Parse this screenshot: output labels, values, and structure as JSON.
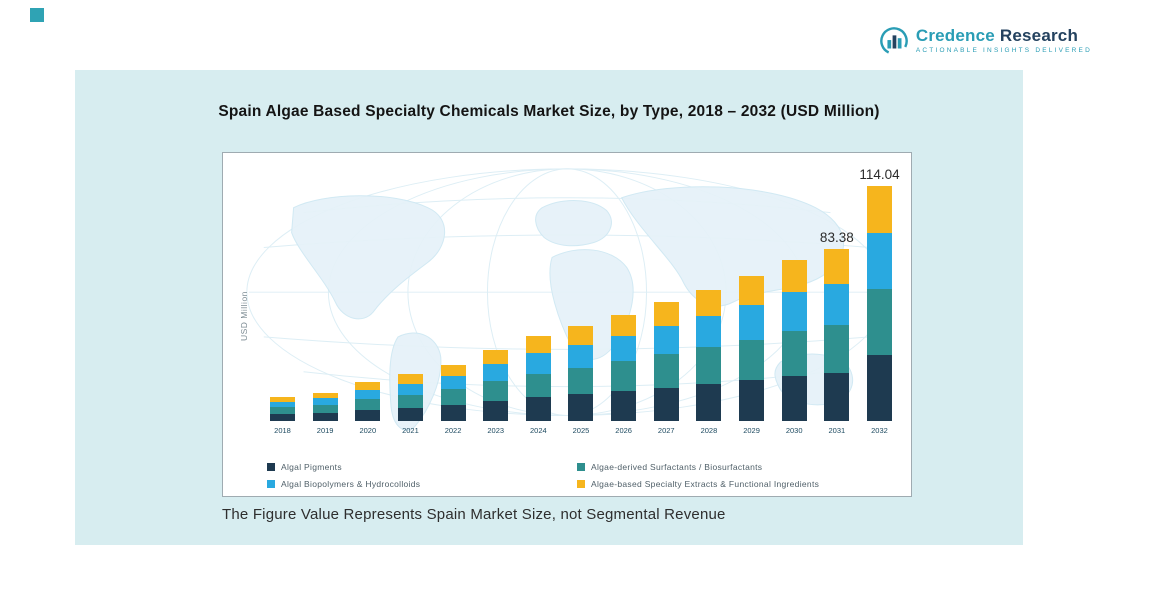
{
  "page": {
    "accent_square_color": "#2fa3b4"
  },
  "logo": {
    "name_part1": "Credence",
    "name_part2": " Research",
    "tagline": "Actionable Insights Delivered",
    "primary_color": "#2a9db5",
    "dark_color": "#24425f"
  },
  "chart_title": "Spain Algae Based Specialty Chemicals Market Size, by Type, 2018 – 2032 (USD Million)",
  "footnote": "The Figure Value Represents Spain Market Size, not Segmental Revenue",
  "chart_data": {
    "type": "bar",
    "stacked": true,
    "title": "Spain Algae Based Specialty Chemicals Market Size, by Type, 2018 – 2032 (USD Million)",
    "xlabel": "",
    "ylabel": "USD Million",
    "gridlines": false,
    "legend_position": "bottom",
    "categories": [
      "2018",
      "2019",
      "2020",
      "2021",
      "2022",
      "2023",
      "2024",
      "2025",
      "2026",
      "2027",
      "2028",
      "2029",
      "2030",
      "2031",
      "2032"
    ],
    "series": [
      {
        "name": "Algal Pigments",
        "color": "#1e3a50",
        "values": [
          3.28,
          3.84,
          5.26,
          6.36,
          7.67,
          9.63,
          11.51,
          12.94,
          14.48,
          16.21,
          17.86,
          19.71,
          21.92,
          23.35,
          31.93
        ]
      },
      {
        "name": "Algae-derived Surfactants / Biosurfactants",
        "color": "#2e8f8e",
        "values": [
          3.28,
          3.84,
          5.26,
          6.36,
          7.67,
          9.63,
          11.51,
          12.94,
          14.48,
          16.21,
          17.86,
          19.71,
          21.92,
          23.35,
          31.93
        ]
      },
      {
        "name": "Algal Biopolymers & Hydrocolloids",
        "color": "#29a9e0",
        "values": [
          2.81,
          3.29,
          4.51,
          5.45,
          6.58,
          8.26,
          9.86,
          11.09,
          12.41,
          13.9,
          15.31,
          16.9,
          18.79,
          20.01,
          27.37
        ]
      },
      {
        "name": "Algae-based Specialty Extracts & Functional Ingredients",
        "color": "#f6b51d",
        "values": [
          2.33,
          2.73,
          3.77,
          4.53,
          5.48,
          6.88,
          8.22,
          9.23,
          10.33,
          11.58,
          12.77,
          14.08,
          15.67,
          16.67,
          22.81
        ]
      }
    ],
    "totals": [
      11.7,
      13.7,
      18.8,
      22.7,
      27.4,
      34.4,
      41.1,
      46.2,
      51.7,
      57.9,
      63.8,
      70.4,
      78.3,
      83.38,
      114.04
    ],
    "value_labels": [
      {
        "category": "2031",
        "label": "83.38"
      },
      {
        "category": "2032",
        "label": "114.04"
      }
    ]
  }
}
